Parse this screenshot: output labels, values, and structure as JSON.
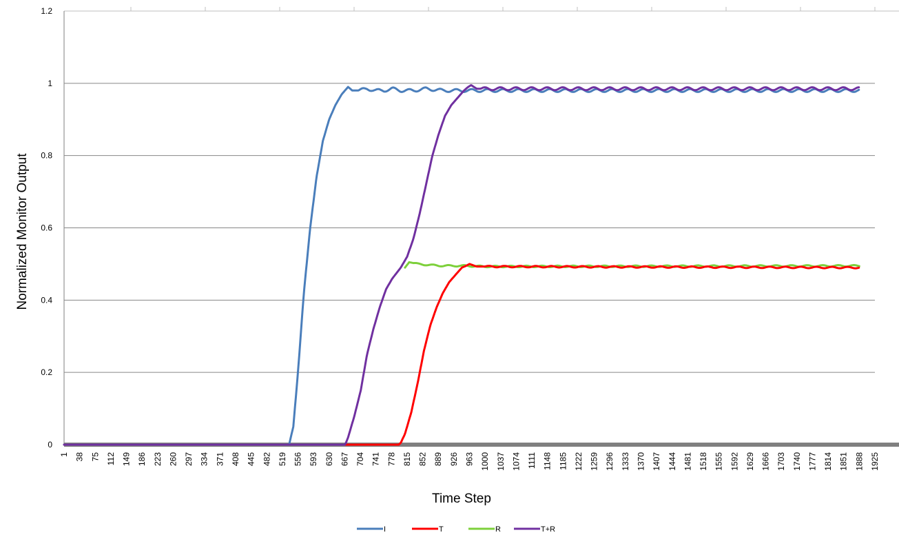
{
  "chart_data": {
    "type": "line",
    "xlabel": "Time Step",
    "ylabel": "Normalized Monitor Output",
    "ylim": [
      0,
      1.2
    ],
    "y_ticks": [
      "0",
      "0.2",
      "0.4",
      "0.6",
      "0.8",
      "1",
      "1.2"
    ],
    "x_tick_labels": [
      "1",
      "38",
      "75",
      "112",
      "149",
      "186",
      "223",
      "260",
      "297",
      "334",
      "371",
      "408",
      "445",
      "482",
      "519",
      "556",
      "593",
      "630",
      "667",
      "704",
      "741",
      "778",
      "815",
      "852",
      "889",
      "926",
      "963",
      "1000",
      "1037",
      "1074",
      "1111",
      "1148",
      "1185",
      "1222",
      "1259",
      "1296",
      "1333",
      "1370",
      "1407",
      "1444",
      "1481",
      "1518",
      "1555",
      "1592",
      "1629",
      "1666",
      "1703",
      "1740",
      "1777",
      "1814",
      "1851",
      "1888",
      "1925"
    ],
    "xlim": [
      1,
      1925
    ],
    "grid": true,
    "legend_position": "bottom",
    "series": [
      {
        "name": "I",
        "color": "#4a7ebb",
        "x": [
          1,
          535,
          545,
          556,
          570,
          585,
          600,
          615,
          630,
          645,
          660,
          675,
          685,
          700,
          720,
          740,
          760,
          780,
          800,
          830,
          860,
          900,
          940,
          980,
          1888
        ],
        "y": [
          0,
          0,
          0.05,
          0.2,
          0.42,
          0.6,
          0.74,
          0.84,
          0.9,
          0.94,
          0.97,
          0.99,
          0.98,
          0.98,
          0.985,
          0.98,
          0.98,
          0.985,
          0.98,
          0.98,
          0.985,
          0.98,
          0.98,
          0.98,
          0.98
        ],
        "osc_amp": 0.004,
        "osc_from": 700
      },
      {
        "name": "T",
        "color": "#ff0000",
        "x": [
          1,
          795,
          800,
          810,
          825,
          840,
          855,
          870,
          885,
          900,
          915,
          930,
          945,
          955,
          963,
          980,
          1888
        ],
        "y": [
          0,
          0,
          0.005,
          0.03,
          0.09,
          0.17,
          0.26,
          0.33,
          0.38,
          0.42,
          0.45,
          0.47,
          0.49,
          0.495,
          0.5,
          0.493,
          0.49
        ],
        "osc_amp": 0.002,
        "osc_from": 1000
      },
      {
        "name": "R",
        "color": "#7dd03b",
        "x": [
          1,
          810,
          820,
          840,
          870,
          900,
          950,
          1000,
          1888
        ],
        "y": [
          0.49,
          0.49,
          0.505,
          0.5,
          0.497,
          0.495,
          0.495,
          0.493,
          0.495
        ],
        "osc_amp": 0.002,
        "osc_from": 830,
        "start_x": 810
      },
      {
        "name": "T+R",
        "color": "#7030a0",
        "x": [
          1,
          668,
          675,
          690,
          705,
          720,
          735,
          750,
          765,
          780,
          800,
          815,
          830,
          845,
          860,
          875,
          890,
          905,
          920,
          935,
          950,
          960,
          967,
          980,
          1000,
          1888
        ],
        "y": [
          0,
          0,
          0.02,
          0.08,
          0.15,
          0.25,
          0.32,
          0.38,
          0.43,
          0.46,
          0.49,
          0.52,
          0.57,
          0.64,
          0.72,
          0.8,
          0.86,
          0.91,
          0.94,
          0.96,
          0.98,
          0.99,
          0.995,
          0.985,
          0.985,
          0.985
        ],
        "osc_amp": 0.004,
        "osc_from": 990
      }
    ]
  }
}
